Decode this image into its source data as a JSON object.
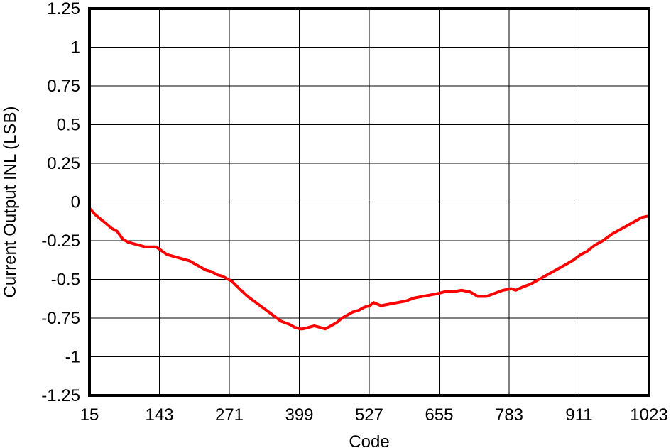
{
  "chart_data": {
    "type": "line",
    "title": "",
    "xlabel": "Code",
    "ylabel": "Current Output INL (LSB)",
    "xlim": [
      15,
      1023
    ],
    "ylim": [
      -1.25,
      1.25
    ],
    "x_ticks": [
      "15",
      "143",
      "271",
      "399",
      "527",
      "655",
      "783",
      "911",
      "1023"
    ],
    "y_ticks": [
      "1.25",
      "1",
      "0.75",
      "0.5",
      "0.25",
      "0",
      "-0.25",
      "-0.5",
      "-0.75",
      "-1",
      "-1.25"
    ],
    "grid": true,
    "line_color": "#ff0000",
    "series": [
      {
        "name": "",
        "color": "#ff0000",
        "x": [
          15,
          25,
          35,
          45,
          55,
          65,
          75,
          85,
          95,
          105,
          115,
          125,
          135,
          143,
          155,
          165,
          175,
          185,
          195,
          205,
          215,
          225,
          235,
          245,
          255,
          265,
          271,
          285,
          300,
          315,
          330,
          345,
          360,
          375,
          385,
          395,
          399,
          410,
          420,
          430,
          440,
          450,
          460,
          470,
          480,
          490,
          500,
          510,
          520,
          527,
          540,
          555,
          570,
          585,
          600,
          615,
          630,
          645,
          655,
          670,
          685,
          700,
          715,
          730,
          745,
          760,
          775,
          783,
          795,
          810,
          825,
          840,
          855,
          870,
          885,
          900,
          911,
          925,
          940,
          955,
          970,
          985,
          1000,
          1010,
          1023
        ],
        "y": [
          -0.04,
          -0.08,
          -0.11,
          -0.14,
          -0.17,
          -0.19,
          -0.24,
          -0.26,
          -0.27,
          -0.28,
          -0.29,
          -0.29,
          -0.29,
          -0.31,
          -0.34,
          -0.35,
          -0.36,
          -0.37,
          -0.38,
          -0.4,
          -0.42,
          -0.44,
          -0.45,
          -0.47,
          -0.48,
          -0.5,
          -0.51,
          -0.56,
          -0.61,
          -0.65,
          -0.69,
          -0.73,
          -0.77,
          -0.79,
          -0.81,
          -0.82,
          -0.82,
          -0.81,
          -0.8,
          -0.81,
          -0.82,
          -0.8,
          -0.78,
          -0.75,
          -0.73,
          -0.71,
          -0.7,
          -0.68,
          -0.67,
          -0.65,
          -0.67,
          -0.66,
          -0.65,
          -0.64,
          -0.62,
          -0.61,
          -0.6,
          -0.59,
          -0.58,
          -0.58,
          -0.57,
          -0.58,
          -0.61,
          -0.61,
          -0.59,
          -0.57,
          -0.56,
          -0.57,
          -0.55,
          -0.53,
          -0.5,
          -0.47,
          -0.44,
          -0.41,
          -0.38,
          -0.34,
          -0.32,
          -0.28,
          -0.25,
          -0.21,
          -0.18,
          -0.15,
          -0.12,
          -0.1,
          -0.09
        ]
      }
    ]
  }
}
